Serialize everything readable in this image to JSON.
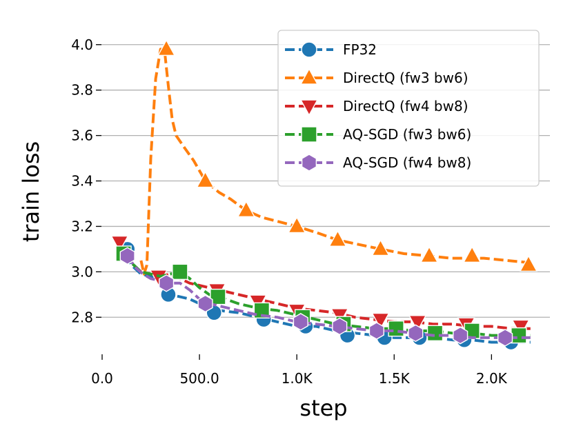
{
  "chart_data": {
    "type": "line",
    "title": "",
    "xlabel": "step",
    "ylabel": "train loss",
    "xlim": [
      0,
      2300
    ],
    "ylim": [
      2.64,
      4.06
    ],
    "xticks": [
      0,
      500,
      1000,
      1500,
      2000
    ],
    "xtick_labels": [
      "0.0",
      "500.0",
      "1.0K",
      "1.5K",
      "2.0K"
    ],
    "yticks": [
      2.8,
      3.0,
      3.2,
      3.4,
      3.6,
      3.8,
      4.0
    ],
    "ytick_labels": [
      "2.8",
      "3.0",
      "3.2",
      "3.4",
      "3.6",
      "3.8",
      "4.0"
    ],
    "grid": "y",
    "legend_position": "top-right",
    "series": [
      {
        "name": "FP32",
        "color": "#1f77b4",
        "marker": "circle",
        "line": [
          [
            100,
            3.13
          ],
          [
            150,
            3.03
          ],
          [
            200,
            2.99
          ],
          [
            250,
            2.98
          ],
          [
            300,
            2.96
          ],
          [
            350,
            2.9
          ],
          [
            400,
            2.89
          ],
          [
            450,
            2.88
          ],
          [
            500,
            2.86
          ],
          [
            550,
            2.83
          ],
          [
            600,
            2.83
          ],
          [
            700,
            2.82
          ],
          [
            800,
            2.8
          ],
          [
            900,
            2.78
          ],
          [
            1000,
            2.76
          ],
          [
            1100,
            2.76
          ],
          [
            1200,
            2.74
          ],
          [
            1300,
            2.73
          ],
          [
            1400,
            2.72
          ],
          [
            1500,
            2.71
          ],
          [
            1600,
            2.71
          ],
          [
            1700,
            2.71
          ],
          [
            1800,
            2.7
          ],
          [
            1900,
            2.7
          ],
          [
            2000,
            2.69
          ],
          [
            2100,
            2.69
          ],
          [
            2200,
            2.69
          ]
        ],
        "markers": [
          [
            130,
            3.1
          ],
          [
            340,
            2.9
          ],
          [
            575,
            2.82
          ],
          [
            830,
            2.79
          ],
          [
            1045,
            2.76
          ],
          [
            1260,
            2.72
          ],
          [
            1450,
            2.71
          ],
          [
            1630,
            2.71
          ],
          [
            1860,
            2.7
          ],
          [
            2100,
            2.69
          ]
        ]
      },
      {
        "name": "DirectQ (fw3 bw6)",
        "color": "#ff7f0e",
        "marker": "triangle-up",
        "line": [
          [
            200,
            3.05
          ],
          [
            215,
            2.99
          ],
          [
            230,
            3.03
          ],
          [
            250,
            3.5
          ],
          [
            275,
            3.85
          ],
          [
            300,
            3.98
          ],
          [
            320,
            3.98
          ],
          [
            340,
            3.82
          ],
          [
            360,
            3.67
          ],
          [
            380,
            3.6
          ],
          [
            420,
            3.55
          ],
          [
            470,
            3.49
          ],
          [
            530,
            3.4
          ],
          [
            600,
            3.35
          ],
          [
            660,
            3.32
          ],
          [
            740,
            3.27
          ],
          [
            820,
            3.24
          ],
          [
            910,
            3.22
          ],
          [
            1000,
            3.2
          ],
          [
            1110,
            3.17
          ],
          [
            1210,
            3.14
          ],
          [
            1320,
            3.12
          ],
          [
            1430,
            3.1
          ],
          [
            1550,
            3.08
          ],
          [
            1680,
            3.07
          ],
          [
            1790,
            3.06
          ],
          [
            1880,
            3.06
          ],
          [
            1960,
            3.06
          ],
          [
            2080,
            3.05
          ],
          [
            2200,
            3.04
          ]
        ],
        "markers": [
          [
            330,
            3.98
          ],
          [
            530,
            3.4
          ],
          [
            740,
            3.27
          ],
          [
            1000,
            3.2
          ],
          [
            1210,
            3.14
          ],
          [
            1430,
            3.1
          ],
          [
            1680,
            3.07
          ],
          [
            1900,
            3.07
          ],
          [
            2190,
            3.03
          ]
        ]
      },
      {
        "name": "DirectQ (fw4 bw8)",
        "color": "#d62728",
        "marker": "triangle-down",
        "line": [
          [
            90,
            3.13
          ],
          [
            150,
            3.04
          ],
          [
            200,
            3.0
          ],
          [
            250,
            2.99
          ],
          [
            300,
            2.98
          ],
          [
            350,
            2.99
          ],
          [
            400,
            2.97
          ],
          [
            450,
            2.95
          ],
          [
            500,
            2.94
          ],
          [
            550,
            2.93
          ],
          [
            600,
            2.92
          ],
          [
            700,
            2.9
          ],
          [
            800,
            2.88
          ],
          [
            900,
            2.86
          ],
          [
            1000,
            2.84
          ],
          [
            1100,
            2.83
          ],
          [
            1200,
            2.82
          ],
          [
            1300,
            2.8
          ],
          [
            1400,
            2.79
          ],
          [
            1500,
            2.78
          ],
          [
            1600,
            2.78
          ],
          [
            1700,
            2.77
          ],
          [
            1800,
            2.77
          ],
          [
            1900,
            2.76
          ],
          [
            2000,
            2.76
          ],
          [
            2100,
            2.75
          ],
          [
            2200,
            2.75
          ]
        ],
        "markers": [
          [
            90,
            3.13
          ],
          [
            290,
            2.98
          ],
          [
            590,
            2.92
          ],
          [
            800,
            2.87
          ],
          [
            1000,
            2.83
          ],
          [
            1220,
            2.81
          ],
          [
            1430,
            2.79
          ],
          [
            1620,
            2.78
          ],
          [
            1870,
            2.77
          ],
          [
            2150,
            2.76
          ]
        ]
      },
      {
        "name": "AQ-SGD (fw3 bw6)",
        "color": "#2ca02c",
        "marker": "square",
        "line": [
          [
            110,
            3.08
          ],
          [
            150,
            3.04
          ],
          [
            200,
            3.0
          ],
          [
            250,
            2.99
          ],
          [
            300,
            2.98
          ],
          [
            350,
            2.99
          ],
          [
            400,
            3.0
          ],
          [
            450,
            2.97
          ],
          [
            500,
            2.93
          ],
          [
            550,
            2.9
          ],
          [
            600,
            2.89
          ],
          [
            700,
            2.86
          ],
          [
            800,
            2.84
          ],
          [
            900,
            2.83
          ],
          [
            1000,
            2.81
          ],
          [
            1100,
            2.79
          ],
          [
            1200,
            2.77
          ],
          [
            1300,
            2.76
          ],
          [
            1400,
            2.75
          ],
          [
            1500,
            2.75
          ],
          [
            1600,
            2.74
          ],
          [
            1700,
            2.74
          ],
          [
            1800,
            2.73
          ],
          [
            1900,
            2.73
          ],
          [
            2000,
            2.72
          ],
          [
            2100,
            2.72
          ],
          [
            2200,
            2.72
          ]
        ],
        "markers": [
          [
            110,
            3.08
          ],
          [
            400,
            3.0
          ],
          [
            595,
            2.89
          ],
          [
            820,
            2.83
          ],
          [
            1030,
            2.8
          ],
          [
            1240,
            2.77
          ],
          [
            1510,
            2.75
          ],
          [
            1710,
            2.73
          ],
          [
            1900,
            2.74
          ],
          [
            2140,
            2.72
          ]
        ]
      },
      {
        "name": "AQ-SGD (fw4 bw8)",
        "color": "#9467bd",
        "marker": "hexagon",
        "line": [
          [
            130,
            3.07
          ],
          [
            170,
            3.02
          ],
          [
            210,
            2.99
          ],
          [
            250,
            2.97
          ],
          [
            300,
            2.96
          ],
          [
            350,
            2.95
          ],
          [
            400,
            2.95
          ],
          [
            450,
            2.92
          ],
          [
            500,
            2.88
          ],
          [
            550,
            2.86
          ],
          [
            600,
            2.85
          ],
          [
            700,
            2.83
          ],
          [
            800,
            2.81
          ],
          [
            900,
            2.8
          ],
          [
            1000,
            2.78
          ],
          [
            1100,
            2.77
          ],
          [
            1200,
            2.76
          ],
          [
            1300,
            2.75
          ],
          [
            1400,
            2.74
          ],
          [
            1500,
            2.74
          ],
          [
            1600,
            2.73
          ],
          [
            1700,
            2.72
          ],
          [
            1800,
            2.72
          ],
          [
            1900,
            2.71
          ],
          [
            2000,
            2.71
          ],
          [
            2100,
            2.71
          ],
          [
            2200,
            2.71
          ]
        ],
        "markers": [
          [
            130,
            3.07
          ],
          [
            330,
            2.95
          ],
          [
            530,
            2.86
          ],
          [
            1020,
            2.78
          ],
          [
            1220,
            2.76
          ],
          [
            1410,
            2.74
          ],
          [
            1610,
            2.73
          ],
          [
            1840,
            2.72
          ],
          [
            2070,
            2.71
          ]
        ]
      }
    ]
  }
}
